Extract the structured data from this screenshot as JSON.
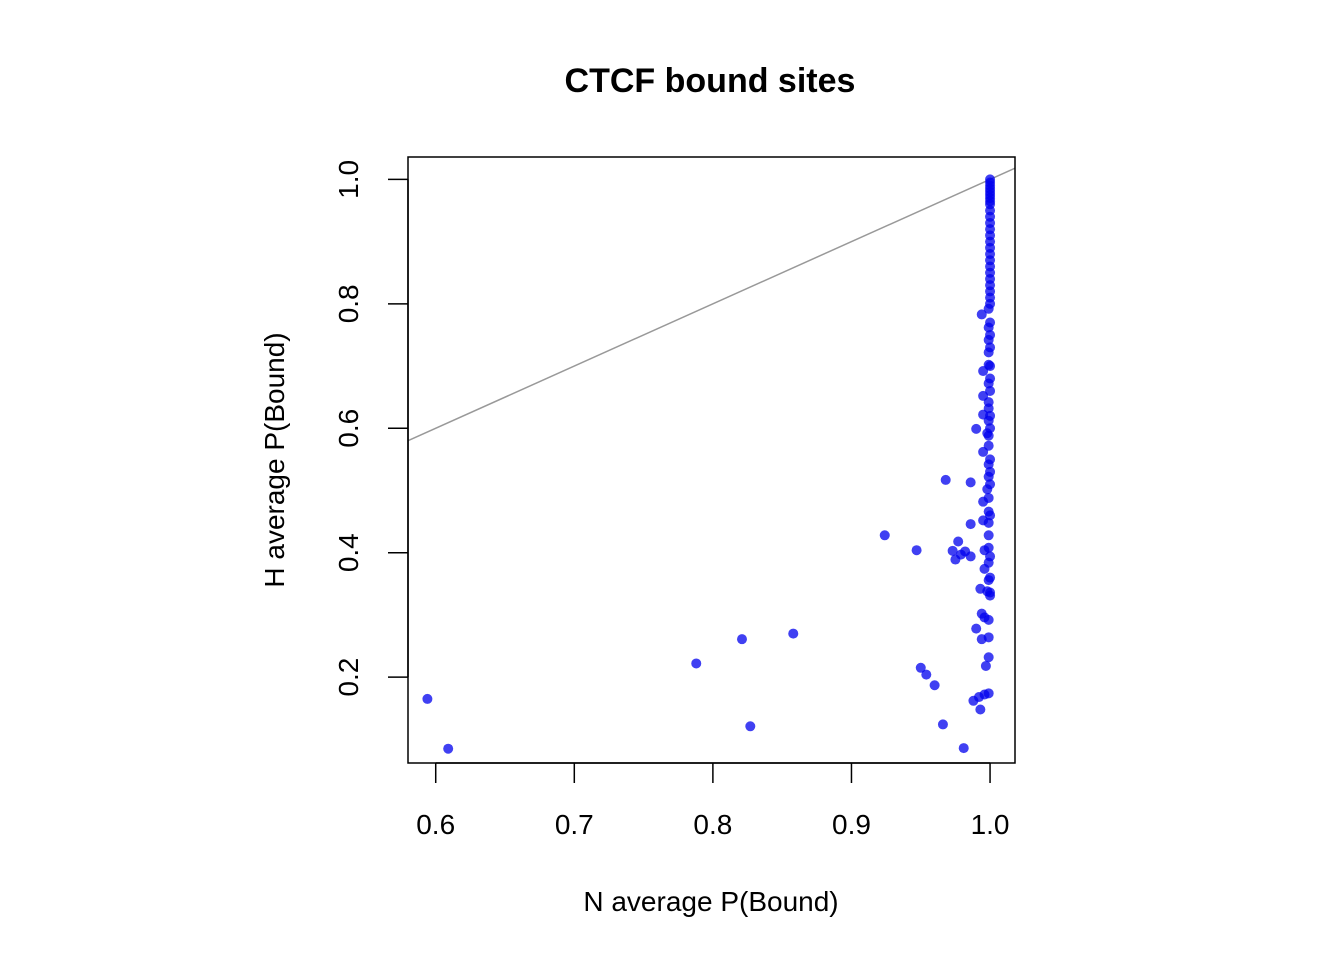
{
  "chart_data": {
    "type": "scatter",
    "title": "CTCF bound sites",
    "xlabel": "N average P(Bound)",
    "ylabel": "H average P(Bound)",
    "xlim": [
      0.58,
      1.018
    ],
    "ylim": [
      0.062,
      1.036
    ],
    "xticks": [
      0.6,
      0.7,
      0.8,
      0.9,
      1.0
    ],
    "yticks": [
      0.2,
      0.4,
      0.6,
      0.8,
      1.0
    ],
    "xtick_labels": [
      "0.6",
      "0.7",
      "0.8",
      "0.9",
      "1.0"
    ],
    "ytick_labels": [
      "0.2",
      "0.4",
      "0.6",
      "0.8",
      "1.0"
    ],
    "grid": false,
    "legend": "none",
    "point_color": "#0000ee",
    "point_opacity": 0.75,
    "reference_line": {
      "intercept": 0,
      "slope": 1,
      "color": "#999999"
    },
    "series": [
      {
        "points": [
          [
            0.594,
            0.165
          ],
          [
            0.609,
            0.085
          ],
          [
            0.788,
            0.222
          ],
          [
            0.821,
            0.261
          ],
          [
            0.827,
            0.121
          ],
          [
            0.858,
            0.27
          ],
          [
            0.924,
            0.428
          ],
          [
            0.947,
            0.404
          ],
          [
            0.95,
            0.215
          ],
          [
            0.954,
            0.204
          ],
          [
            0.96,
            0.187
          ],
          [
            0.966,
            0.124
          ],
          [
            0.968,
            0.517
          ],
          [
            0.973,
            0.403
          ],
          [
            0.975,
            0.389
          ],
          [
            0.977,
            0.418
          ],
          [
            0.979,
            0.397
          ],
          [
            0.981,
            0.086
          ],
          [
            0.982,
            0.402
          ],
          [
            0.986,
            0.513
          ],
          [
            0.986,
            0.446
          ],
          [
            0.986,
            0.394
          ],
          [
            0.988,
            0.162
          ],
          [
            0.99,
            0.599
          ],
          [
            0.99,
            0.278
          ],
          [
            0.992,
            0.168
          ],
          [
            0.993,
            0.148
          ],
          [
            0.993,
            0.342
          ],
          [
            0.994,
            0.302
          ],
          [
            0.994,
            0.261
          ],
          [
            0.994,
            0.783
          ],
          [
            0.995,
            0.692
          ],
          [
            0.995,
            0.652
          ],
          [
            0.995,
            0.622
          ],
          [
            0.995,
            0.562
          ],
          [
            0.995,
            0.482
          ],
          [
            0.995,
            0.452
          ],
          [
            0.996,
            0.404
          ],
          [
            0.996,
            0.374
          ],
          [
            0.996,
            0.296
          ],
          [
            0.996,
            0.172
          ],
          [
            0.997,
            0.218
          ],
          [
            0.998,
            0.338
          ],
          [
            0.998,
            0.592
          ],
          [
            0.998,
            0.502
          ],
          [
            0.999,
            0.264
          ],
          [
            0.999,
            0.292
          ],
          [
            0.999,
            0.232
          ],
          [
            0.999,
            0.174
          ],
          [
            0.999,
            0.356
          ],
          [
            0.999,
            0.384
          ],
          [
            0.999,
            0.408
          ],
          [
            0.999,
            0.428
          ],
          [
            0.999,
            0.448
          ],
          [
            0.999,
            0.466
          ],
          [
            0.999,
            0.488
          ],
          [
            0.999,
            0.522
          ],
          [
            0.999,
            0.542
          ],
          [
            0.999,
            0.572
          ],
          [
            0.999,
            0.588
          ],
          [
            0.999,
            0.612
          ],
          [
            0.999,
            0.632
          ],
          [
            0.999,
            0.642
          ],
          [
            0.999,
            0.672
          ],
          [
            0.999,
            0.702
          ],
          [
            0.999,
            0.722
          ],
          [
            0.999,
            0.742
          ],
          [
            0.999,
            0.762
          ],
          [
            0.999,
            0.792
          ],
          [
            1.0,
            0.331
          ],
          [
            1.0,
            0.336
          ],
          [
            1.0,
            0.36
          ],
          [
            1.0,
            0.394
          ],
          [
            1.0,
            0.46
          ],
          [
            1.0,
            0.51
          ],
          [
            1.0,
            0.53
          ],
          [
            1.0,
            0.55
          ],
          [
            1.0,
            0.6
          ],
          [
            1.0,
            0.62
          ],
          [
            1.0,
            0.66
          ],
          [
            1.0,
            0.68
          ],
          [
            1.0,
            0.7
          ],
          [
            1.0,
            0.73
          ],
          [
            1.0,
            0.75
          ],
          [
            1.0,
            0.77
          ],
          [
            1.0,
            0.8
          ],
          [
            1.0,
            0.81
          ],
          [
            1.0,
            0.82
          ],
          [
            1.0,
            0.83
          ],
          [
            1.0,
            0.84
          ],
          [
            1.0,
            0.85
          ],
          [
            1.0,
            0.86
          ],
          [
            1.0,
            0.87
          ],
          [
            1.0,
            0.88
          ],
          [
            1.0,
            0.89
          ],
          [
            1.0,
            0.9
          ],
          [
            1.0,
            0.91
          ],
          [
            1.0,
            0.92
          ],
          [
            1.0,
            0.93
          ],
          [
            1.0,
            0.94
          ],
          [
            1.0,
            0.95
          ],
          [
            1.0,
            0.96
          ],
          [
            1.0,
            0.965
          ],
          [
            1.0,
            0.97
          ],
          [
            1.0,
            0.975
          ],
          [
            1.0,
            0.98
          ],
          [
            1.0,
            0.985
          ],
          [
            1.0,
            0.99
          ],
          [
            1.0,
            0.995
          ],
          [
            1.0,
            1.0
          ]
        ]
      }
    ]
  }
}
